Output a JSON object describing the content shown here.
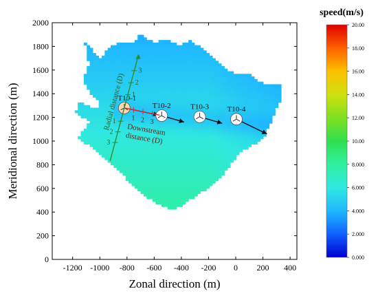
{
  "chart_data": {
    "type": "heatmap",
    "title": "",
    "xlabel": "Zonal direction (m)",
    "ylabel": "Meridional direction (m)",
    "xlim": [
      -1350,
      450
    ],
    "ylim": [
      0,
      2000
    ],
    "xticks": [
      -1200,
      -1000,
      -800,
      -600,
      -400,
      -200,
      0,
      200,
      400
    ],
    "yticks": [
      0,
      200,
      400,
      600,
      800,
      1000,
      1200,
      1400,
      1600,
      1800,
      2000
    ],
    "grid": false,
    "colorbar": {
      "title": "speed(m/s)",
      "min": 0,
      "max": 20,
      "tick_labels": [
        "0.000",
        "2.000",
        "4.000",
        "6.000",
        "8.000",
        "10.00",
        "12.00",
        "14.00",
        "16.00",
        "18.00",
        "20.00"
      ],
      "colors": [
        "#0000d0",
        "#1060ff",
        "#20b8ff",
        "#30e8e0",
        "#30f0a0",
        "#30e050",
        "#80e020",
        "#d0e010",
        "#ffc000",
        "#ff6000",
        "#e00000"
      ]
    },
    "turbines": [
      {
        "label": "T10-1",
        "x": -820,
        "y": 1280,
        "speed": 3.0
      },
      {
        "label": "T10-2",
        "x": -545,
        "y": 1215,
        "speed": 3.5
      },
      {
        "label": "T10-3",
        "x": -265,
        "y": 1205,
        "speed": 4.0
      },
      {
        "label": "T10-4",
        "x": 5,
        "y": 1185,
        "speed": 4.0
      }
    ],
    "wake_arrows": [
      {
        "from": [
          -820,
          1280
        ],
        "to": [
          -570,
          1220
        ]
      },
      {
        "from": [
          -545,
          1215
        ],
        "to": [
          -380,
          1160
        ]
      },
      {
        "from": [
          -265,
          1205
        ],
        "to": [
          -100,
          1150
        ]
      },
      {
        "from": [
          5,
          1185
        ],
        "to": [
          230,
          1060
        ]
      }
    ],
    "downstream_axis": {
      "label": "Downstream distance (D)",
      "label_lines": [
        "Downstream",
        "distance (D)"
      ],
      "ticks": [
        "1",
        "2",
        "3"
      ]
    },
    "radial_axis": {
      "label": "Radial distance (D)",
      "ticks_upper": [
        "1",
        "2",
        "3"
      ],
      "ticks_lower": [
        "1",
        "2",
        "3"
      ]
    },
    "speed_field": {
      "description_zone_speeds": [
        {
          "zone": "north-east",
          "speed": 3.0
        },
        {
          "zone": "centre",
          "speed": 5.5
        },
        {
          "zone": "south",
          "speed": 7.5
        }
      ]
    }
  }
}
